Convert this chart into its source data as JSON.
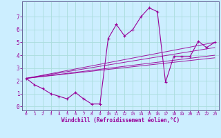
{
  "xlabel": "Windchill (Refroidissement éolien,°C)",
  "bg_color": "#cceeff",
  "line_color": "#990099",
  "grid_color": "#aadddd",
  "axis_color": "#666699",
  "xlim": [
    -0.5,
    23.5
  ],
  "ylim": [
    -0.3,
    8.2
  ],
  "xticks": [
    0,
    1,
    2,
    3,
    4,
    5,
    6,
    7,
    8,
    9,
    10,
    11,
    12,
    13,
    14,
    15,
    16,
    17,
    18,
    19,
    20,
    21,
    22,
    23
  ],
  "yticks": [
    0,
    1,
    2,
    3,
    4,
    5,
    6,
    7
  ],
  "main_curve": {
    "x": [
      0,
      1,
      2,
      3,
      4,
      5,
      6,
      7,
      8,
      9,
      10,
      11,
      12,
      13,
      14,
      15,
      16,
      17,
      18,
      19,
      20,
      21,
      22,
      23
    ],
    "y": [
      2.2,
      1.7,
      1.4,
      1.0,
      0.8,
      0.6,
      1.1,
      0.6,
      0.2,
      0.2,
      5.3,
      6.4,
      5.5,
      6.0,
      7.0,
      7.7,
      7.4,
      1.9,
      3.9,
      3.9,
      3.9,
      5.1,
      4.6,
      5.0
    ]
  },
  "trend_lines": [
    {
      "x": [
        0,
        23
      ],
      "y": [
        2.2,
        5.0
      ]
    },
    {
      "x": [
        0,
        23
      ],
      "y": [
        2.2,
        4.6
      ]
    },
    {
      "x": [
        0,
        23
      ],
      "y": [
        2.2,
        4.0
      ]
    },
    {
      "x": [
        0,
        23
      ],
      "y": [
        2.2,
        3.8
      ]
    }
  ]
}
